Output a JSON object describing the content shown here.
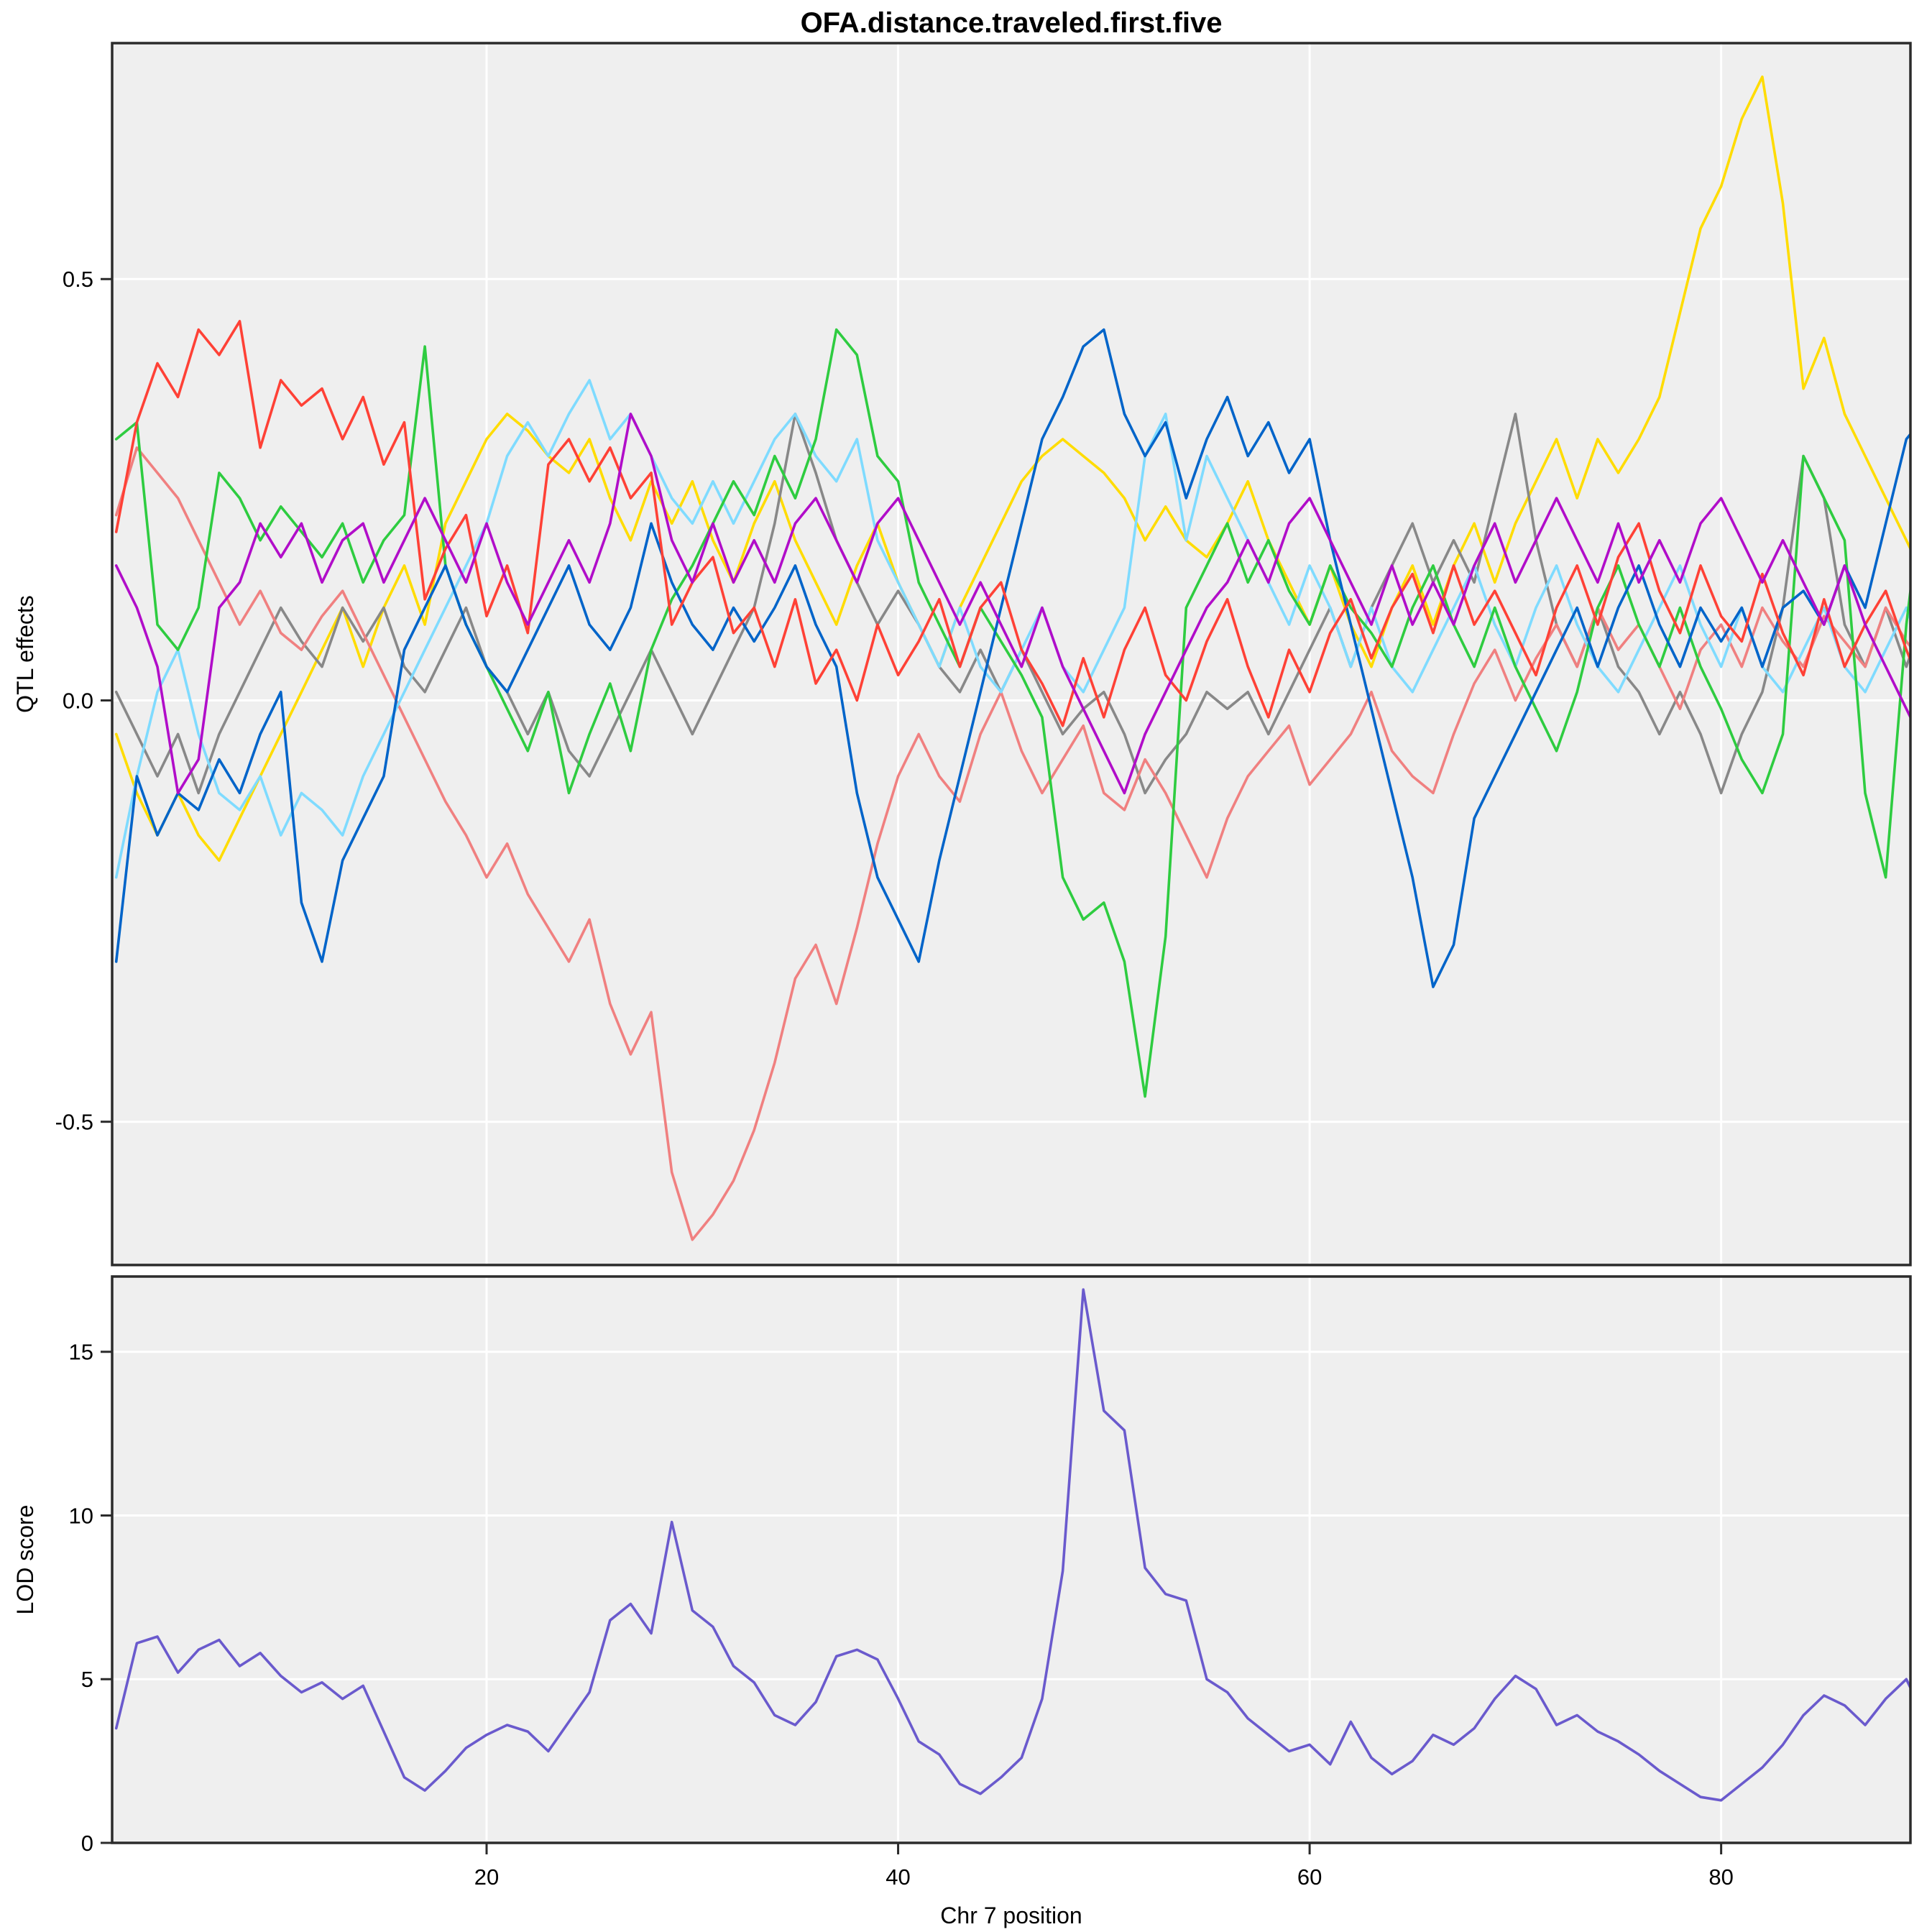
{
  "title": "OFA.distance.traveled.first.five",
  "colors": {
    "panel_bg": "#EFEFEF",
    "grid": "#FFFFFF",
    "border": "#2B2B2B",
    "text": "#000000"
  },
  "chart_data": [
    {
      "type": "line",
      "title": "OFA.distance.traveled.first.five",
      "xlabel": "",
      "ylabel": "QTL effects",
      "xlim": [
        1.8,
        89.2
      ],
      "ylim": [
        -0.67,
        0.78
      ],
      "xticks": [
        "20",
        "40",
        "60",
        "80"
      ],
      "yticks": [
        "-0.5",
        "0.0",
        "0.5"
      ],
      "grid": true,
      "legend": "none",
      "x": [
        2,
        3,
        4,
        5,
        6,
        7,
        8,
        9,
        10,
        11,
        12,
        13,
        14,
        15,
        16,
        17,
        18,
        19,
        20,
        21,
        22,
        23,
        24,
        25,
        26,
        27,
        28,
        29,
        30,
        31,
        32,
        33,
        34,
        35,
        36,
        37,
        38,
        39,
        40,
        41,
        42,
        43,
        44,
        45,
        46,
        47,
        48,
        49,
        50,
        51,
        52,
        53,
        54,
        55,
        56,
        57,
        58,
        59,
        60,
        61,
        62,
        63,
        64,
        65,
        66,
        67,
        68,
        69,
        70,
        71,
        72,
        73,
        74,
        75,
        76,
        77,
        78,
        79,
        80,
        81,
        82,
        83,
        84,
        85,
        86,
        87,
        88,
        89,
        90
      ],
      "series": [
        {
          "name": "yellow",
          "color": "#FFDC00",
          "values": [
            -0.04,
            -0.11,
            -0.16,
            -0.11,
            -0.16,
            -0.19,
            -0.14,
            -0.09,
            -0.04,
            0.01,
            0.06,
            0.11,
            0.04,
            0.11,
            0.16,
            0.09,
            0.21,
            0.26,
            0.31,
            0.34,
            0.32,
            0.29,
            0.27,
            0.31,
            0.24,
            0.19,
            0.26,
            0.21,
            0.26,
            0.19,
            0.14,
            0.21,
            0.26,
            0.19,
            0.14,
            0.09,
            0.16,
            0.21,
            0.14,
            0.09,
            0.04,
            0.11,
            0.16,
            0.21,
            0.26,
            0.29,
            0.31,
            0.29,
            0.27,
            0.24,
            0.19,
            0.23,
            0.19,
            0.17,
            0.21,
            0.26,
            0.19,
            0.14,
            0.09,
            0.16,
            0.09,
            0.04,
            0.11,
            0.16,
            0.09,
            0.16,
            0.21,
            0.14,
            0.21,
            0.26,
            0.31,
            0.24,
            0.31,
            0.27,
            0.31,
            0.36,
            0.46,
            0.56,
            0.61,
            0.69,
            0.74,
            0.59,
            0.37,
            0.43,
            0.34,
            0.29,
            0.24,
            0.19,
            0.14
          ]
        },
        {
          "name": "gray",
          "color": "#888888",
          "values": [
            0.01,
            -0.04,
            -0.09,
            -0.04,
            -0.11,
            -0.04,
            0.01,
            0.06,
            0.11,
            0.07,
            0.04,
            0.11,
            0.07,
            0.11,
            0.04,
            0.01,
            0.06,
            0.11,
            0.04,
            0.01,
            -0.04,
            0.01,
            -0.06,
            -0.09,
            -0.04,
            0.01,
            0.06,
            0.01,
            -0.04,
            0.01,
            0.06,
            0.11,
            0.21,
            0.34,
            0.27,
            0.19,
            0.14,
            0.09,
            0.13,
            0.09,
            0.04,
            0.01,
            0.06,
            0.01,
            0.06,
            0.01,
            -0.04,
            -0.01,
            0.01,
            -0.04,
            -0.11,
            -0.07,
            -0.04,
            0.01,
            -0.01,
            0.01,
            -0.04,
            0.01,
            0.06,
            0.11,
            0.04,
            0.11,
            0.16,
            0.21,
            0.14,
            0.19,
            0.14,
            0.24,
            0.34,
            0.19,
            0.09,
            0.04,
            0.11,
            0.04,
            0.01,
            -0.04,
            0.01,
            -0.04,
            -0.11,
            -0.04,
            0.01,
            0.11,
            0.29,
            0.24,
            0.09,
            0.04,
            0.11,
            0.04,
            0.11
          ]
        },
        {
          "name": "salmon",
          "color": "#F08080",
          "values": [
            0.22,
            0.3,
            0.27,
            0.24,
            0.19,
            0.14,
            0.09,
            0.13,
            0.08,
            0.06,
            0.1,
            0.13,
            0.08,
            0.03,
            -0.02,
            -0.07,
            -0.12,
            -0.16,
            -0.21,
            -0.17,
            -0.23,
            -0.27,
            -0.31,
            -0.26,
            -0.36,
            -0.42,
            -0.37,
            -0.56,
            -0.64,
            -0.61,
            -0.57,
            -0.51,
            -0.43,
            -0.33,
            -0.29,
            -0.36,
            -0.27,
            -0.17,
            -0.09,
            -0.04,
            -0.09,
            -0.12,
            -0.04,
            0.01,
            -0.06,
            -0.11,
            -0.07,
            -0.03,
            -0.11,
            -0.13,
            -0.07,
            -0.11,
            -0.16,
            -0.21,
            -0.14,
            -0.09,
            -0.06,
            -0.03,
            -0.1,
            -0.07,
            -0.04,
            0.01,
            -0.06,
            -0.09,
            -0.11,
            -0.04,
            0.02,
            0.06,
            0.0,
            0.05,
            0.09,
            0.04,
            0.11,
            0.06,
            0.09,
            0.04,
            -0.01,
            0.06,
            0.09,
            0.04,
            0.11,
            0.07,
            0.04,
            0.1,
            0.07,
            0.04,
            0.11,
            0.07,
            0.04
          ]
        },
        {
          "name": "lightblue",
          "color": "#7FDBFF",
          "values": [
            -0.21,
            -0.09,
            0.01,
            0.06,
            -0.04,
            -0.11,
            -0.13,
            -0.09,
            -0.16,
            -0.11,
            -0.13,
            -0.16,
            -0.09,
            -0.04,
            0.01,
            0.06,
            0.11,
            0.16,
            0.21,
            0.29,
            0.33,
            0.29,
            0.34,
            0.38,
            0.31,
            0.34,
            0.29,
            0.24,
            0.21,
            0.26,
            0.21,
            0.26,
            0.31,
            0.34,
            0.29,
            0.26,
            0.31,
            0.19,
            0.14,
            0.09,
            0.04,
            0.11,
            0.04,
            0.01,
            0.06,
            0.11,
            0.04,
            0.01,
            0.06,
            0.11,
            0.29,
            0.34,
            0.19,
            0.29,
            0.24,
            0.19,
            0.14,
            0.09,
            0.16,
            0.11,
            0.04,
            0.11,
            0.04,
            0.01,
            0.06,
            0.11,
            0.16,
            0.09,
            0.04,
            0.11,
            0.16,
            0.09,
            0.04,
            0.01,
            0.06,
            0.11,
            0.16,
            0.09,
            0.04,
            0.11,
            0.04,
            0.01,
            0.06,
            0.11,
            0.04,
            0.01,
            0.06,
            0.11,
            0.04
          ]
        },
        {
          "name": "green",
          "color": "#2ECC40",
          "values": [
            0.31,
            0.33,
            0.09,
            0.06,
            0.11,
            0.27,
            0.24,
            0.19,
            0.23,
            0.2,
            0.17,
            0.21,
            0.14,
            0.19,
            0.22,
            0.42,
            0.16,
            0.09,
            0.04,
            -0.01,
            -0.06,
            0.01,
            -0.11,
            -0.04,
            0.02,
            -0.06,
            0.06,
            0.12,
            0.16,
            0.21,
            0.26,
            0.22,
            0.29,
            0.24,
            0.31,
            0.44,
            0.41,
            0.29,
            0.26,
            0.14,
            0.09,
            0.04,
            0.11,
            0.07,
            0.03,
            -0.02,
            -0.21,
            -0.26,
            -0.24,
            -0.31,
            -0.47,
            -0.28,
            0.11,
            0.16,
            0.21,
            0.14,
            0.19,
            0.13,
            0.09,
            0.16,
            0.11,
            0.08,
            0.04,
            0.11,
            0.16,
            0.09,
            0.04,
            0.11,
            0.04,
            -0.01,
            -0.06,
            0.01,
            0.11,
            0.16,
            0.09,
            0.04,
            0.11,
            0.04,
            -0.01,
            -0.07,
            -0.11,
            -0.04,
            0.29,
            0.24,
            0.19,
            -0.11,
            -0.21,
            0.09,
            0.29
          ]
        },
        {
          "name": "blue",
          "color": "#0064C9",
          "values": [
            -0.31,
            -0.09,
            -0.16,
            -0.11,
            -0.13,
            -0.07,
            -0.11,
            -0.04,
            0.01,
            -0.24,
            -0.31,
            -0.19,
            -0.14,
            -0.09,
            0.06,
            0.11,
            0.16,
            0.09,
            0.04,
            0.01,
            0.06,
            0.11,
            0.16,
            0.09,
            0.06,
            0.11,
            0.21,
            0.14,
            0.09,
            0.06,
            0.11,
            0.07,
            0.11,
            0.16,
            0.09,
            0.04,
            -0.11,
            -0.21,
            -0.26,
            -0.31,
            -0.19,
            -0.09,
            0.01,
            0.11,
            0.21,
            0.31,
            0.36,
            0.42,
            0.44,
            0.34,
            0.29,
            0.33,
            0.24,
            0.31,
            0.36,
            0.29,
            0.33,
            0.27,
            0.31,
            0.19,
            0.09,
            -0.01,
            -0.11,
            -0.21,
            -0.34,
            -0.29,
            -0.14,
            -0.09,
            -0.04,
            0.01,
            0.06,
            0.11,
            0.04,
            0.11,
            0.16,
            0.09,
            0.04,
            0.11,
            0.07,
            0.11,
            0.04,
            0.11,
            0.13,
            0.09,
            0.16,
            0.11,
            0.21,
            0.31,
            0.34
          ]
        },
        {
          "name": "red",
          "color": "#FF4136",
          "values": [
            0.2,
            0.33,
            0.4,
            0.36,
            0.44,
            0.41,
            0.45,
            0.3,
            0.38,
            0.35,
            0.37,
            0.31,
            0.36,
            0.28,
            0.33,
            0.12,
            0.18,
            0.22,
            0.1,
            0.16,
            0.08,
            0.28,
            0.31,
            0.26,
            0.3,
            0.24,
            0.27,
            0.09,
            0.14,
            0.17,
            0.08,
            0.11,
            0.04,
            0.12,
            0.02,
            0.06,
            0.0,
            0.09,
            0.03,
            0.07,
            0.12,
            0.04,
            0.11,
            0.14,
            0.06,
            0.02,
            -0.03,
            0.05,
            -0.02,
            0.06,
            0.11,
            0.03,
            0.0,
            0.07,
            0.12,
            0.04,
            -0.02,
            0.06,
            0.01,
            0.08,
            0.12,
            0.05,
            0.11,
            0.15,
            0.08,
            0.16,
            0.09,
            0.13,
            0.08,
            0.03,
            0.11,
            0.16,
            0.09,
            0.17,
            0.21,
            0.13,
            0.08,
            0.16,
            0.1,
            0.07,
            0.15,
            0.08,
            0.03,
            0.12,
            0.04,
            0.09,
            0.13,
            0.06,
            0.0
          ]
        },
        {
          "name": "purple",
          "color": "#B10DC9",
          "values": [
            0.16,
            0.11,
            0.04,
            -0.11,
            -0.07,
            0.11,
            0.14,
            0.21,
            0.17,
            0.21,
            0.14,
            0.19,
            0.21,
            0.14,
            0.19,
            0.24,
            0.19,
            0.14,
            0.21,
            0.14,
            0.09,
            0.14,
            0.19,
            0.14,
            0.21,
            0.34,
            0.29,
            0.19,
            0.14,
            0.21,
            0.14,
            0.19,
            0.14,
            0.21,
            0.24,
            0.19,
            0.14,
            0.21,
            0.24,
            0.19,
            0.14,
            0.09,
            0.14,
            0.09,
            0.04,
            0.11,
            0.04,
            -0.01,
            -0.06,
            -0.11,
            -0.04,
            0.01,
            0.06,
            0.11,
            0.14,
            0.19,
            0.14,
            0.21,
            0.24,
            0.19,
            0.14,
            0.09,
            0.16,
            0.09,
            0.14,
            0.09,
            0.16,
            0.21,
            0.14,
            0.19,
            0.24,
            0.19,
            0.14,
            0.21,
            0.14,
            0.19,
            0.14,
            0.21,
            0.24,
            0.19,
            0.14,
            0.19,
            0.14,
            0.09,
            0.16,
            0.09,
            0.04,
            -0.01,
            -0.06
          ]
        }
      ]
    },
    {
      "type": "line",
      "title": "",
      "xlabel": "Chr 7 position",
      "ylabel": "LOD score",
      "xlim": [
        1.8,
        89.2
      ],
      "ylim": [
        0,
        17.3
      ],
      "xticks": [
        "20",
        "40",
        "60",
        "80"
      ],
      "yticks": [
        "0",
        "5",
        "10",
        "15"
      ],
      "grid": true,
      "legend": "none",
      "x": [
        2,
        3,
        4,
        5,
        6,
        7,
        8,
        9,
        10,
        11,
        12,
        13,
        14,
        15,
        16,
        17,
        18,
        19,
        20,
        21,
        22,
        23,
        24,
        25,
        26,
        27,
        28,
        29,
        30,
        31,
        32,
        33,
        34,
        35,
        36,
        37,
        38,
        39,
        40,
        41,
        42,
        43,
        44,
        45,
        46,
        47,
        48,
        49,
        50,
        51,
        52,
        53,
        54,
        55,
        56,
        57,
        58,
        59,
        60,
        61,
        62,
        63,
        64,
        65,
        66,
        67,
        68,
        69,
        70,
        71,
        72,
        73,
        74,
        75,
        76,
        77,
        78,
        79,
        80,
        81,
        82,
        83,
        84,
        85,
        86,
        87,
        88,
        89,
        90
      ],
      "series": [
        {
          "name": "lod",
          "color": "#6A5ACD",
          "values": [
            3.5,
            6.1,
            6.3,
            5.2,
            5.9,
            6.2,
            5.4,
            5.8,
            5.1,
            4.6,
            4.9,
            4.4,
            4.8,
            3.4,
            2.0,
            1.6,
            2.2,
            2.9,
            3.3,
            3.6,
            3.4,
            2.8,
            3.7,
            4.6,
            6.8,
            7.3,
            6.4,
            9.8,
            7.1,
            6.6,
            5.4,
            4.9,
            3.9,
            3.6,
            4.3,
            5.7,
            5.9,
            5.6,
            4.4,
            3.1,
            2.7,
            1.8,
            1.5,
            2.0,
            2.6,
            4.4,
            8.3,
            16.9,
            13.2,
            12.6,
            8.4,
            7.6,
            7.4,
            5.0,
            4.6,
            3.8,
            3.3,
            2.8,
            3.0,
            2.4,
            3.7,
            2.6,
            2.1,
            2.5,
            3.3,
            3.0,
            3.5,
            4.4,
            5.1,
            4.7,
            3.6,
            3.9,
            3.4,
            3.1,
            2.7,
            2.2,
            1.8,
            1.4,
            1.3,
            1.8,
            2.3,
            3.0,
            3.9,
            4.5,
            4.2,
            3.6,
            4.4,
            5.0,
            3.7
          ]
        }
      ]
    }
  ]
}
